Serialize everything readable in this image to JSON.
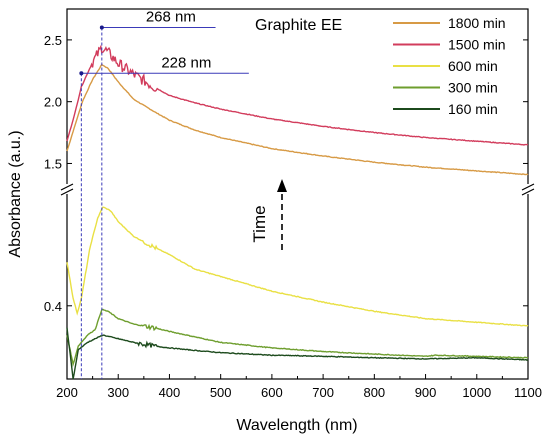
{
  "chart_data": {
    "type": "line",
    "title": "Graphite EE",
    "xlabel": "Wavelength (nm)",
    "ylabel": "Absorbance (a.u.)",
    "xlim": [
      200,
      1100
    ],
    "axis_break": "broken y-axis between about 1.35 and 0.7; upper panel 1.35–2.75, lower panel 0.2–0.7",
    "upper_ylim": [
      1.35,
      2.75
    ],
    "lower_ylim": [
      0.2,
      0.7
    ],
    "x_ticks": [
      200,
      300,
      400,
      500,
      600,
      700,
      800,
      900,
      1000,
      1100
    ],
    "x_tick_labels": [
      "200",
      "300",
      "400",
      "500",
      "600",
      "700",
      "800",
      "900",
      "1000",
      "1100"
    ],
    "y_tick_labels_upper": [
      {
        "value": 2.5,
        "label": "2.5"
      },
      {
        "value": 2.0,
        "label": "2.0"
      },
      {
        "value": 1.5,
        "label": "1.5"
      }
    ],
    "y_tick_labels_lower": [
      {
        "value": 0.4,
        "label": "0.4"
      }
    ],
    "legend_position": "top-right",
    "grid": false,
    "series": [
      {
        "name": "1800 min",
        "color": "#d79a45",
        "panel": "upper",
        "points": [
          [
            200,
            1.6
          ],
          [
            215,
            1.8
          ],
          [
            230,
            2.0
          ],
          [
            250,
            2.18
          ],
          [
            268,
            2.3
          ],
          [
            280,
            2.27
          ],
          [
            300,
            2.16
          ],
          [
            330,
            2.02
          ],
          [
            370,
            1.92
          ],
          [
            400,
            1.85
          ],
          [
            450,
            1.77
          ],
          [
            500,
            1.71
          ],
          [
            600,
            1.62
          ],
          [
            700,
            1.56
          ],
          [
            800,
            1.51
          ],
          [
            900,
            1.47
          ],
          [
            1000,
            1.44
          ],
          [
            1100,
            1.41
          ]
        ]
      },
      {
        "name": "1500 min",
        "color": "#d23c5c",
        "panel": "upper",
        "noise_range": [
          250,
          375
        ],
        "points": [
          [
            200,
            1.68
          ],
          [
            215,
            1.9
          ],
          [
            228,
            2.12
          ],
          [
            250,
            2.32
          ],
          [
            268,
            2.44
          ],
          [
            280,
            2.4
          ],
          [
            300,
            2.31
          ],
          [
            330,
            2.22
          ],
          [
            370,
            2.12
          ],
          [
            400,
            2.05
          ],
          [
            450,
            1.99
          ],
          [
            500,
            1.94
          ],
          [
            600,
            1.86
          ],
          [
            700,
            1.8
          ],
          [
            800,
            1.75
          ],
          [
            900,
            1.71
          ],
          [
            1000,
            1.68
          ],
          [
            1100,
            1.65
          ]
        ]
      },
      {
        "name": "600 min",
        "color": "#e9e044",
        "panel": "lower",
        "noise_range": [
          350,
          375
        ],
        "points": [
          [
            200,
            0.52
          ],
          [
            212,
            0.42
          ],
          [
            220,
            0.38
          ],
          [
            228,
            0.42
          ],
          [
            245,
            0.56
          ],
          [
            260,
            0.64
          ],
          [
            270,
            0.67
          ],
          [
            285,
            0.66
          ],
          [
            300,
            0.63
          ],
          [
            330,
            0.59
          ],
          [
            370,
            0.56
          ],
          [
            400,
            0.54
          ],
          [
            450,
            0.5
          ],
          [
            500,
            0.48
          ],
          [
            600,
            0.44
          ],
          [
            700,
            0.41
          ],
          [
            800,
            0.385
          ],
          [
            900,
            0.365
          ],
          [
            1000,
            0.355
          ],
          [
            1100,
            0.345
          ]
        ]
      },
      {
        "name": "300 min",
        "color": "#6e9e2e",
        "panel": "lower",
        "noise_range": [
          350,
          375
        ],
        "points": [
          [
            200,
            0.32
          ],
          [
            212,
            0.24
          ],
          [
            222,
            0.29
          ],
          [
            240,
            0.32
          ],
          [
            255,
            0.335
          ],
          [
            268,
            0.39
          ],
          [
            280,
            0.385
          ],
          [
            300,
            0.365
          ],
          [
            330,
            0.35
          ],
          [
            370,
            0.34
          ],
          [
            400,
            0.33
          ],
          [
            450,
            0.315
          ],
          [
            500,
            0.3
          ],
          [
            600,
            0.285
          ],
          [
            700,
            0.275
          ],
          [
            800,
            0.268
          ],
          [
            900,
            0.262
          ],
          [
            920,
            0.265
          ],
          [
            1000,
            0.262
          ],
          [
            1100,
            0.258
          ]
        ]
      },
      {
        "name": "160 min",
        "color": "#1c4a1c",
        "panel": "lower",
        "noise_range": [
          340,
          375
        ],
        "points": [
          [
            200,
            0.34
          ],
          [
            212,
            0.2
          ],
          [
            222,
            0.28
          ],
          [
            240,
            0.3
          ],
          [
            255,
            0.31
          ],
          [
            270,
            0.32
          ],
          [
            285,
            0.315
          ],
          [
            300,
            0.31
          ],
          [
            330,
            0.3
          ],
          [
            370,
            0.29
          ],
          [
            400,
            0.285
          ],
          [
            450,
            0.278
          ],
          [
            500,
            0.272
          ],
          [
            600,
            0.265
          ],
          [
            700,
            0.262
          ],
          [
            800,
            0.258
          ],
          [
            900,
            0.255
          ],
          [
            1000,
            0.258
          ],
          [
            1100,
            0.252
          ]
        ]
      }
    ],
    "annotations": [
      {
        "text": "268 nm",
        "x": 268,
        "y": 2.6,
        "x_end": 490
      },
      {
        "text": "228 nm",
        "x": 228,
        "y": 2.23,
        "x_end": 555
      }
    ],
    "marker_lines": [
      {
        "x": 268,
        "color": "#3a3ab8",
        "label": "268 nm"
      },
      {
        "x": 228,
        "color": "#3a3ab8",
        "label": "228 nm"
      }
    ],
    "arrow_label": "Time"
  }
}
